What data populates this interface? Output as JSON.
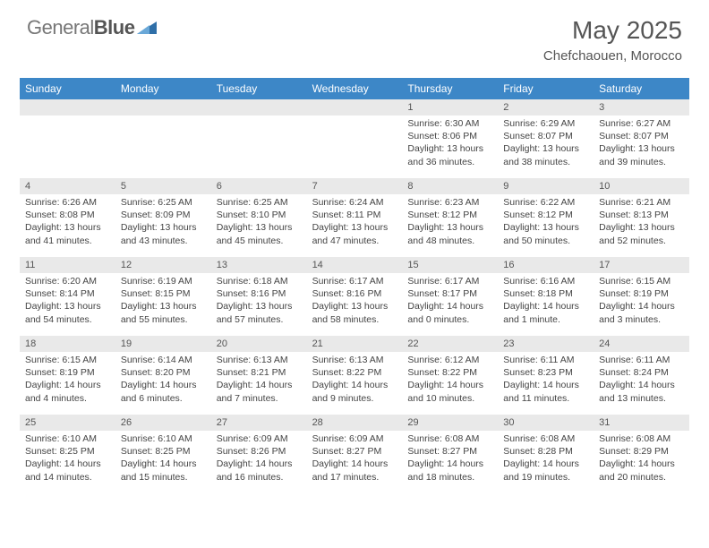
{
  "logo": {
    "text1": "General",
    "text2": "Blue"
  },
  "title": "May 2025",
  "location": "Chefchaouen, Morocco",
  "colors": {
    "header_bg": "#3d87c7",
    "header_text": "#ffffff",
    "daynum_bg": "#e9e9e9",
    "text": "#444444",
    "logo_gray": "#777777",
    "logo_dark": "#555555",
    "logo_icon": "#2f6fa8"
  },
  "layout": {
    "cols": 7,
    "rows": 5
  },
  "weekdays": [
    "Sunday",
    "Monday",
    "Tuesday",
    "Wednesday",
    "Thursday",
    "Friday",
    "Saturday"
  ],
  "days": [
    {
      "n": "",
      "sunrise": "",
      "sunset": "",
      "daylight": ""
    },
    {
      "n": "",
      "sunrise": "",
      "sunset": "",
      "daylight": ""
    },
    {
      "n": "",
      "sunrise": "",
      "sunset": "",
      "daylight": ""
    },
    {
      "n": "",
      "sunrise": "",
      "sunset": "",
      "daylight": ""
    },
    {
      "n": "1",
      "sunrise": "Sunrise: 6:30 AM",
      "sunset": "Sunset: 8:06 PM",
      "daylight": "Daylight: 13 hours and 36 minutes."
    },
    {
      "n": "2",
      "sunrise": "Sunrise: 6:29 AM",
      "sunset": "Sunset: 8:07 PM",
      "daylight": "Daylight: 13 hours and 38 minutes."
    },
    {
      "n": "3",
      "sunrise": "Sunrise: 6:27 AM",
      "sunset": "Sunset: 8:07 PM",
      "daylight": "Daylight: 13 hours and 39 minutes."
    },
    {
      "n": "4",
      "sunrise": "Sunrise: 6:26 AM",
      "sunset": "Sunset: 8:08 PM",
      "daylight": "Daylight: 13 hours and 41 minutes."
    },
    {
      "n": "5",
      "sunrise": "Sunrise: 6:25 AM",
      "sunset": "Sunset: 8:09 PM",
      "daylight": "Daylight: 13 hours and 43 minutes."
    },
    {
      "n": "6",
      "sunrise": "Sunrise: 6:25 AM",
      "sunset": "Sunset: 8:10 PM",
      "daylight": "Daylight: 13 hours and 45 minutes."
    },
    {
      "n": "7",
      "sunrise": "Sunrise: 6:24 AM",
      "sunset": "Sunset: 8:11 PM",
      "daylight": "Daylight: 13 hours and 47 minutes."
    },
    {
      "n": "8",
      "sunrise": "Sunrise: 6:23 AM",
      "sunset": "Sunset: 8:12 PM",
      "daylight": "Daylight: 13 hours and 48 minutes."
    },
    {
      "n": "9",
      "sunrise": "Sunrise: 6:22 AM",
      "sunset": "Sunset: 8:12 PM",
      "daylight": "Daylight: 13 hours and 50 minutes."
    },
    {
      "n": "10",
      "sunrise": "Sunrise: 6:21 AM",
      "sunset": "Sunset: 8:13 PM",
      "daylight": "Daylight: 13 hours and 52 minutes."
    },
    {
      "n": "11",
      "sunrise": "Sunrise: 6:20 AM",
      "sunset": "Sunset: 8:14 PM",
      "daylight": "Daylight: 13 hours and 54 minutes."
    },
    {
      "n": "12",
      "sunrise": "Sunrise: 6:19 AM",
      "sunset": "Sunset: 8:15 PM",
      "daylight": "Daylight: 13 hours and 55 minutes."
    },
    {
      "n": "13",
      "sunrise": "Sunrise: 6:18 AM",
      "sunset": "Sunset: 8:16 PM",
      "daylight": "Daylight: 13 hours and 57 minutes."
    },
    {
      "n": "14",
      "sunrise": "Sunrise: 6:17 AM",
      "sunset": "Sunset: 8:16 PM",
      "daylight": "Daylight: 13 hours and 58 minutes."
    },
    {
      "n": "15",
      "sunrise": "Sunrise: 6:17 AM",
      "sunset": "Sunset: 8:17 PM",
      "daylight": "Daylight: 14 hours and 0 minutes."
    },
    {
      "n": "16",
      "sunrise": "Sunrise: 6:16 AM",
      "sunset": "Sunset: 8:18 PM",
      "daylight": "Daylight: 14 hours and 1 minute."
    },
    {
      "n": "17",
      "sunrise": "Sunrise: 6:15 AM",
      "sunset": "Sunset: 8:19 PM",
      "daylight": "Daylight: 14 hours and 3 minutes."
    },
    {
      "n": "18",
      "sunrise": "Sunrise: 6:15 AM",
      "sunset": "Sunset: 8:19 PM",
      "daylight": "Daylight: 14 hours and 4 minutes."
    },
    {
      "n": "19",
      "sunrise": "Sunrise: 6:14 AM",
      "sunset": "Sunset: 8:20 PM",
      "daylight": "Daylight: 14 hours and 6 minutes."
    },
    {
      "n": "20",
      "sunrise": "Sunrise: 6:13 AM",
      "sunset": "Sunset: 8:21 PM",
      "daylight": "Daylight: 14 hours and 7 minutes."
    },
    {
      "n": "21",
      "sunrise": "Sunrise: 6:13 AM",
      "sunset": "Sunset: 8:22 PM",
      "daylight": "Daylight: 14 hours and 9 minutes."
    },
    {
      "n": "22",
      "sunrise": "Sunrise: 6:12 AM",
      "sunset": "Sunset: 8:22 PM",
      "daylight": "Daylight: 14 hours and 10 minutes."
    },
    {
      "n": "23",
      "sunrise": "Sunrise: 6:11 AM",
      "sunset": "Sunset: 8:23 PM",
      "daylight": "Daylight: 14 hours and 11 minutes."
    },
    {
      "n": "24",
      "sunrise": "Sunrise: 6:11 AM",
      "sunset": "Sunset: 8:24 PM",
      "daylight": "Daylight: 14 hours and 13 minutes."
    },
    {
      "n": "25",
      "sunrise": "Sunrise: 6:10 AM",
      "sunset": "Sunset: 8:25 PM",
      "daylight": "Daylight: 14 hours and 14 minutes."
    },
    {
      "n": "26",
      "sunrise": "Sunrise: 6:10 AM",
      "sunset": "Sunset: 8:25 PM",
      "daylight": "Daylight: 14 hours and 15 minutes."
    },
    {
      "n": "27",
      "sunrise": "Sunrise: 6:09 AM",
      "sunset": "Sunset: 8:26 PM",
      "daylight": "Daylight: 14 hours and 16 minutes."
    },
    {
      "n": "28",
      "sunrise": "Sunrise: 6:09 AM",
      "sunset": "Sunset: 8:27 PM",
      "daylight": "Daylight: 14 hours and 17 minutes."
    },
    {
      "n": "29",
      "sunrise": "Sunrise: 6:08 AM",
      "sunset": "Sunset: 8:27 PM",
      "daylight": "Daylight: 14 hours and 18 minutes."
    },
    {
      "n": "30",
      "sunrise": "Sunrise: 6:08 AM",
      "sunset": "Sunset: 8:28 PM",
      "daylight": "Daylight: 14 hours and 19 minutes."
    },
    {
      "n": "31",
      "sunrise": "Sunrise: 6:08 AM",
      "sunset": "Sunset: 8:29 PM",
      "daylight": "Daylight: 14 hours and 20 minutes."
    }
  ]
}
